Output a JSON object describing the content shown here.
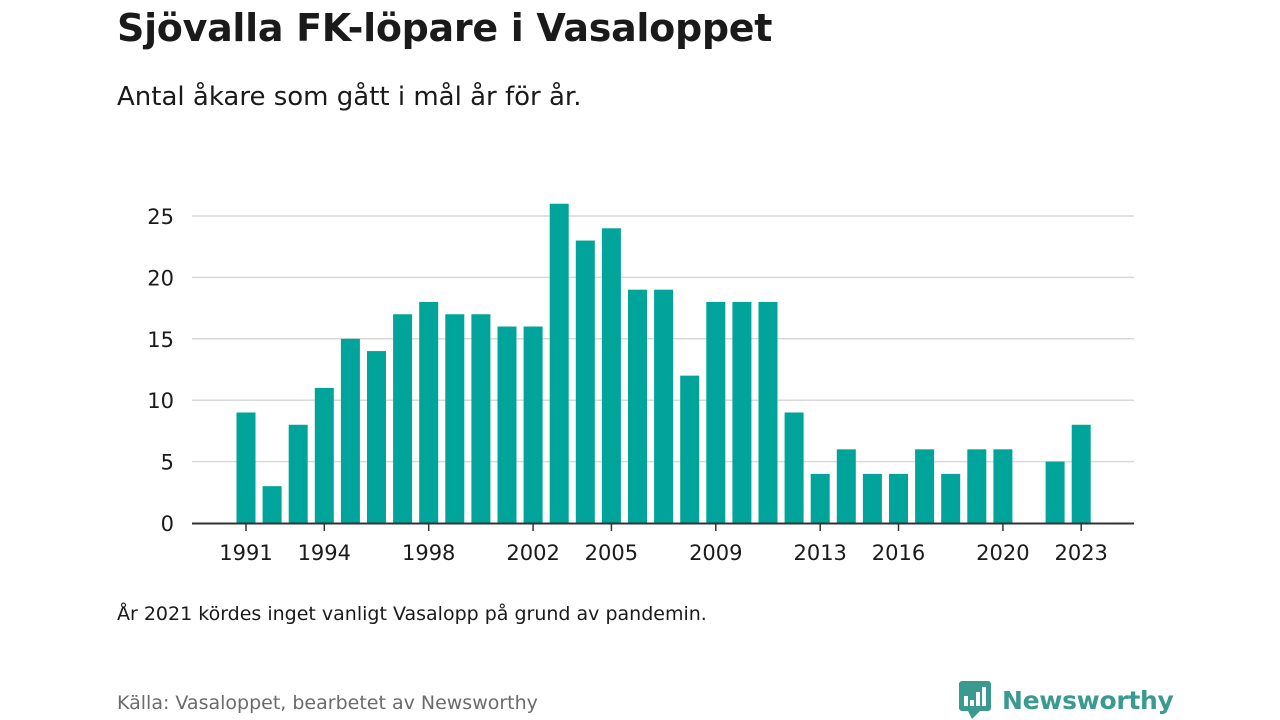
{
  "header": {
    "title": "Sjövalla FK-löpare i Vasaloppet",
    "subtitle": "Antal åkare som gått i mål år för år."
  },
  "footer": {
    "note": "År 2021 kördes inget vanligt Vasalopp på grund av pandemin.",
    "source": "Källa: Vasaloppet, bearbetet av Newsworthy",
    "brand": "Newsworthy"
  },
  "colors": {
    "bar": "#00a49a",
    "grid": "#d9d9d9",
    "axis": "#333333",
    "brand": "#3a9a90"
  },
  "icons": {
    "logo": "newsworthy-chart-bubble-icon"
  },
  "chart_data": {
    "type": "bar",
    "title": "Sjövalla FK-löpare i Vasaloppet",
    "subtitle": "Antal åkare som gått i mål år för år.",
    "xlabel": "",
    "ylabel": "",
    "ylim": [
      0,
      25
    ],
    "yticks": [
      0,
      5,
      10,
      15,
      20,
      25
    ],
    "xticks": [
      1991,
      1994,
      1998,
      2002,
      2005,
      2009,
      2013,
      2016,
      2020,
      2023
    ],
    "grid": true,
    "legend": "none",
    "categories": [
      1991,
      1992,
      1993,
      1994,
      1995,
      1996,
      1997,
      1998,
      1999,
      2000,
      2001,
      2002,
      2003,
      2004,
      2005,
      2006,
      2007,
      2008,
      2009,
      2010,
      2011,
      2012,
      2013,
      2014,
      2015,
      2016,
      2017,
      2018,
      2019,
      2020,
      2021,
      2022,
      2023
    ],
    "values": [
      9,
      3,
      8,
      11,
      15,
      14,
      17,
      18,
      17,
      17,
      16,
      16,
      26,
      23,
      24,
      19,
      19,
      12,
      18,
      18,
      18,
      9,
      4,
      6,
      4,
      4,
      6,
      4,
      6,
      6,
      null,
      5,
      8
    ]
  }
}
